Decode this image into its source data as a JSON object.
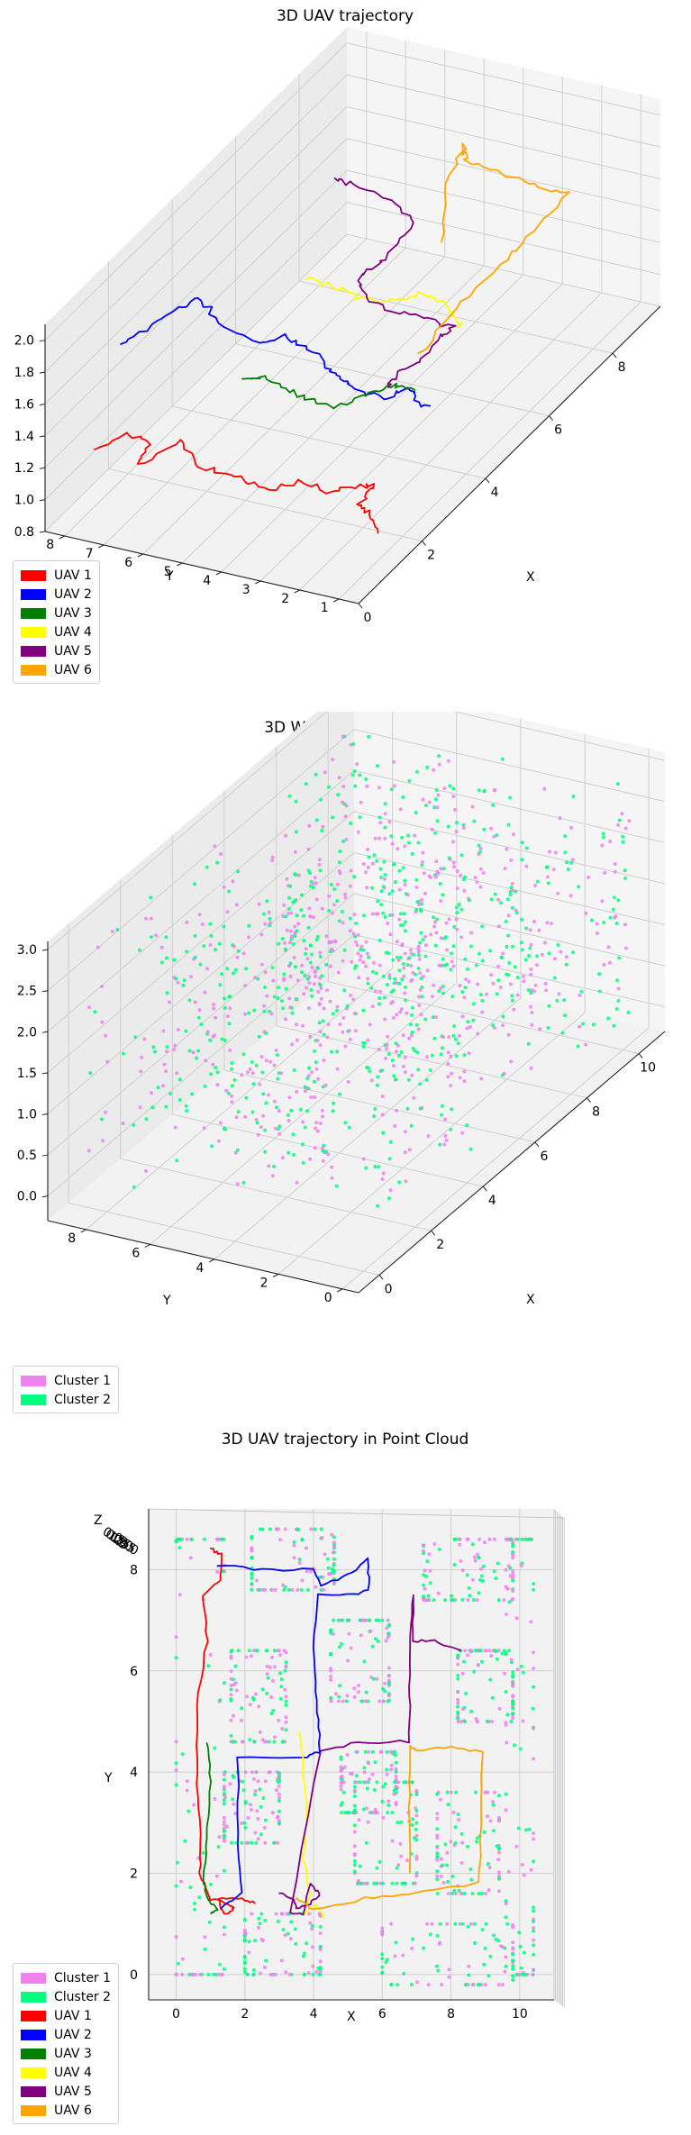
{
  "chart_data": [
    {
      "type": "line",
      "projection": "3d",
      "title": "3D UAV trajectory",
      "xlabel": "X",
      "ylabel": "Y",
      "zlabel": "",
      "xticks": [
        "0",
        "2",
        "4",
        "6",
        "8"
      ],
      "yticks": [
        "1",
        "2",
        "3",
        "4",
        "5",
        "6",
        "7",
        "8"
      ],
      "zticks": [
        "0.8",
        "1.0",
        "1.2",
        "1.4",
        "1.6",
        "1.8",
        "2.0"
      ],
      "xlim": [
        0,
        9.5
      ],
      "ylim": [
        0.5,
        8.5
      ],
      "zlim": [
        0.8,
        2.1
      ],
      "grid": true,
      "legend_position": "lower-left",
      "series": [
        {
          "name": "UAV 1",
          "color": "#ff0000",
          "points": [
            [
              1.0,
              8.0,
              1.15
            ],
            [
              1.5,
              7.6,
              1.18
            ],
            [
              1.7,
              7.2,
              1.1
            ],
            [
              1.2,
              7.1,
              1.06
            ],
            [
              1.6,
              6.3,
              1.18
            ],
            [
              1.3,
              5.6,
              1.12
            ],
            [
              1.3,
              4.7,
              1.1
            ],
            [
              1.1,
              3.8,
              1.12
            ],
            [
              1.2,
              3.0,
              1.18
            ],
            [
              1.3,
              2.3,
              1.15
            ],
            [
              1.3,
              1.6,
              1.22
            ],
            [
              1.5,
              1.3,
              1.2
            ],
            [
              1.3,
              1.5,
              1.12
            ],
            [
              1.4,
              1.4,
              1.05
            ],
            [
              1.6,
              1.3,
              0.88
            ]
          ]
        },
        {
          "name": "UAV 2",
          "color": "#0000ff",
          "points": [
            [
              1.8,
              8.0,
              1.65
            ],
            [
              2.5,
              7.9,
              1.62
            ],
            [
              3.2,
              7.8,
              1.6
            ],
            [
              3.6,
              7.5,
              1.62
            ],
            [
              3.6,
              7.0,
              1.5
            ],
            [
              3.7,
              6.1,
              1.38
            ],
            [
              3.8,
              5.5,
              1.45
            ],
            [
              3.9,
              5.0,
              1.4
            ],
            [
              3.7,
              4.3,
              1.35
            ],
            [
              3.5,
              3.8,
              1.33
            ],
            [
              3.4,
              3.4,
              1.32
            ],
            [
              3.4,
              2.6,
              1.3
            ],
            [
              3.6,
              2.1,
              1.35
            ],
            [
              3.5,
              1.8,
              1.28
            ],
            [
              3.5,
              1.5,
              1.3
            ]
          ]
        },
        {
          "name": "UAV 3",
          "color": "#008000",
          "points": [
            [
              1.4,
              4.6,
              1.7
            ],
            [
              1.6,
              4.2,
              1.7
            ],
            [
              1.5,
              3.6,
              1.68
            ],
            [
              1.5,
              2.9,
              1.65
            ],
            [
              1.4,
              2.2,
              1.66
            ],
            [
              1.8,
              1.8,
              1.68
            ],
            [
              2.3,
              1.6,
              1.65
            ],
            [
              2.6,
              1.5,
              1.6
            ],
            [
              2.9,
              1.4,
              1.52
            ]
          ]
        },
        {
          "name": "UAV 4",
          "color": "#ffff00",
          "points": [
            [
              3.5,
              4.7,
              1.92
            ],
            [
              3.6,
              4.1,
              1.88
            ],
            [
              3.7,
              3.4,
              1.82
            ],
            [
              3.8,
              2.6,
              1.84
            ],
            [
              3.9,
              2.0,
              1.9
            ],
            [
              4.0,
              1.4,
              1.82
            ],
            [
              3.9,
              1.1,
              1.75
            ],
            [
              4.1,
              1.3,
              1.7
            ]
          ]
        },
        {
          "name": "UAV 5",
          "color": "#800080",
          "points": [
            [
              2.0,
              1.4,
              1.72
            ],
            [
              2.5,
              1.5,
              1.7
            ],
            [
              3.1,
              1.5,
              1.65
            ],
            [
              3.8,
              1.5,
              1.68
            ],
            [
              4.3,
              1.6,
              1.62
            ],
            [
              4.5,
              2.5,
              1.6
            ],
            [
              4.4,
              3.4,
              1.62
            ],
            [
              4.6,
              4.2,
              1.65
            ],
            [
              5.2,
              4.6,
              1.62
            ],
            [
              6.0,
              4.7,
              1.55
            ],
            [
              7.0,
              4.7,
              1.58
            ],
            [
              7.3,
              5.6,
              1.6
            ],
            [
              7.2,
              6.5,
              1.68
            ],
            [
              7.5,
              7.2,
              1.62
            ]
          ]
        },
        {
          "name": "UAV 6",
          "color": "#ffa500",
          "points": [
            [
              3.3,
              1.6,
              1.66
            ],
            [
              4.5,
              1.7,
              1.7
            ],
            [
              5.8,
              1.6,
              1.72
            ],
            [
              7.0,
              1.7,
              1.7
            ],
            [
              8.1,
              1.7,
              1.72
            ],
            [
              8.2,
              2.7,
              1.68
            ],
            [
              8.3,
              3.6,
              1.7
            ],
            [
              8.2,
              4.4,
              1.75
            ],
            [
              8.4,
              4.6,
              1.8
            ],
            [
              8.3,
              5.0,
              1.55
            ],
            [
              8.4,
              5.2,
              1.15
            ]
          ]
        }
      ]
    },
    {
      "type": "scatter",
      "projection": "3d",
      "title": "3D World Point Cloud",
      "xlabel": "X",
      "ylabel": "Y",
      "zlabel": "",
      "xticks": [
        "0",
        "2",
        "4",
        "6",
        "8",
        "10"
      ],
      "yticks": [
        "0",
        "2",
        "4",
        "6",
        "8"
      ],
      "zticks": [
        "0.0",
        "0.5",
        "1.0",
        "1.5",
        "2.0",
        "2.5",
        "3.0"
      ],
      "xlim": [
        -0.8,
        11
      ],
      "ylim": [
        -0.5,
        9.2
      ],
      "zlim": [
        -0.3,
        3.1
      ],
      "grid": true,
      "legend_position": "lower-left",
      "series": [
        {
          "name": "Cluster 1",
          "color": "#ee82ee"
        },
        {
          "name": "Cluster 2",
          "color": "#00ff7f"
        }
      ]
    },
    {
      "type": "scatter+line",
      "projection": "3d-top-view",
      "title": "3D UAV trajectory in Point Cloud",
      "xlabel": "X",
      "ylabel": "Y",
      "zlabel": "Z",
      "xticks": [
        "0",
        "2",
        "4",
        "6",
        "8",
        "10"
      ],
      "yticks": [
        "0",
        "2",
        "4",
        "6",
        "8"
      ],
      "zticks": [
        "0.0",
        "0.5",
        "1.0",
        "1.5",
        "2.0",
        "2.5",
        "3.0"
      ],
      "xlim": [
        -0.8,
        11
      ],
      "ylim": [
        -0.5,
        9.2
      ],
      "grid": true,
      "legend_position": "lower-left",
      "series": [
        {
          "name": "Cluster 1",
          "color": "#ee82ee"
        },
        {
          "name": "Cluster 2",
          "color": "#00ff7f"
        },
        {
          "name": "UAV 1",
          "color": "#ff0000",
          "points": [
            [
              1.0,
              8.4
            ],
            [
              1.3,
              8.3
            ],
            [
              1.3,
              7.8
            ],
            [
              0.8,
              7.5
            ],
            [
              0.9,
              6.6
            ],
            [
              0.6,
              5.3
            ],
            [
              0.6,
              4.0
            ],
            [
              0.7,
              2.8
            ],
            [
              0.7,
              2.0
            ],
            [
              1.0,
              1.5
            ],
            [
              1.5,
              1.4
            ],
            [
              1.7,
              1.3
            ],
            [
              1.4,
              1.2
            ],
            [
              1.2,
              1.5
            ],
            [
              1.9,
              1.5
            ],
            [
              2.3,
              1.4
            ]
          ]
        },
        {
          "name": "UAV 2",
          "color": "#0000ff",
          "points": [
            [
              1.2,
              8.1
            ],
            [
              2.5,
              8.0
            ],
            [
              4.0,
              8.0
            ],
            [
              4.2,
              7.7
            ],
            [
              5.0,
              7.9
            ],
            [
              5.6,
              8.2
            ],
            [
              5.6,
              7.6
            ],
            [
              5.2,
              7.5
            ],
            [
              4.1,
              7.5
            ],
            [
              4.0,
              6.2
            ],
            [
              4.1,
              5.2
            ],
            [
              4.2,
              4.4
            ],
            [
              3.8,
              4.3
            ],
            [
              1.8,
              4.3
            ],
            [
              1.8,
              2.8
            ],
            [
              1.9,
              1.6
            ],
            [
              1.3,
              1.3
            ]
          ]
        },
        {
          "name": "UAV 3",
          "color": "#008000",
          "points": [
            [
              0.9,
              4.6
            ],
            [
              1.0,
              3.8
            ],
            [
              0.9,
              2.7
            ],
            [
              0.8,
              1.9
            ],
            [
              0.9,
              1.5
            ],
            [
              1.2,
              1.3
            ],
            [
              1.0,
              1.2
            ]
          ]
        },
        {
          "name": "UAV 4",
          "color": "#ffff00",
          "points": [
            [
              3.6,
              4.8
            ],
            [
              3.7,
              4.1
            ],
            [
              3.8,
              3.2
            ],
            [
              3.7,
              2.3
            ],
            [
              3.9,
              1.6
            ],
            [
              3.7,
              1.2
            ],
            [
              4.1,
              1.4
            ],
            [
              4.3,
              1.1
            ]
          ]
        },
        {
          "name": "UAV 5",
          "color": "#800080",
          "points": [
            [
              3.0,
              1.6
            ],
            [
              3.4,
              1.5
            ],
            [
              3.5,
              1.3
            ],
            [
              3.9,
              1.4
            ],
            [
              4.2,
              1.6
            ],
            [
              3.9,
              1.8
            ],
            [
              3.7,
              1.2
            ],
            [
              3.3,
              1.2
            ],
            [
              4.2,
              4.4
            ],
            [
              5.3,
              4.6
            ],
            [
              6.8,
              4.6
            ],
            [
              6.8,
              5.5
            ],
            [
              6.8,
              6.5
            ],
            [
              6.9,
              7.5
            ],
            [
              6.9,
              6.6
            ],
            [
              7.5,
              6.6
            ],
            [
              8.3,
              6.4
            ]
          ]
        },
        {
          "name": "UAV 6",
          "color": "#ffa500",
          "points": [
            [
              3.5,
              1.5
            ],
            [
              4.0,
              1.3
            ],
            [
              5.5,
              1.5
            ],
            [
              6.8,
              1.6
            ],
            [
              8.8,
              1.8
            ],
            [
              8.9,
              3.2
            ],
            [
              8.9,
              4.4
            ],
            [
              8.0,
              4.5
            ],
            [
              7.0,
              4.4
            ],
            [
              6.8,
              4.5
            ],
            [
              6.8,
              3.3
            ],
            [
              6.8,
              2.0
            ]
          ]
        }
      ]
    }
  ]
}
